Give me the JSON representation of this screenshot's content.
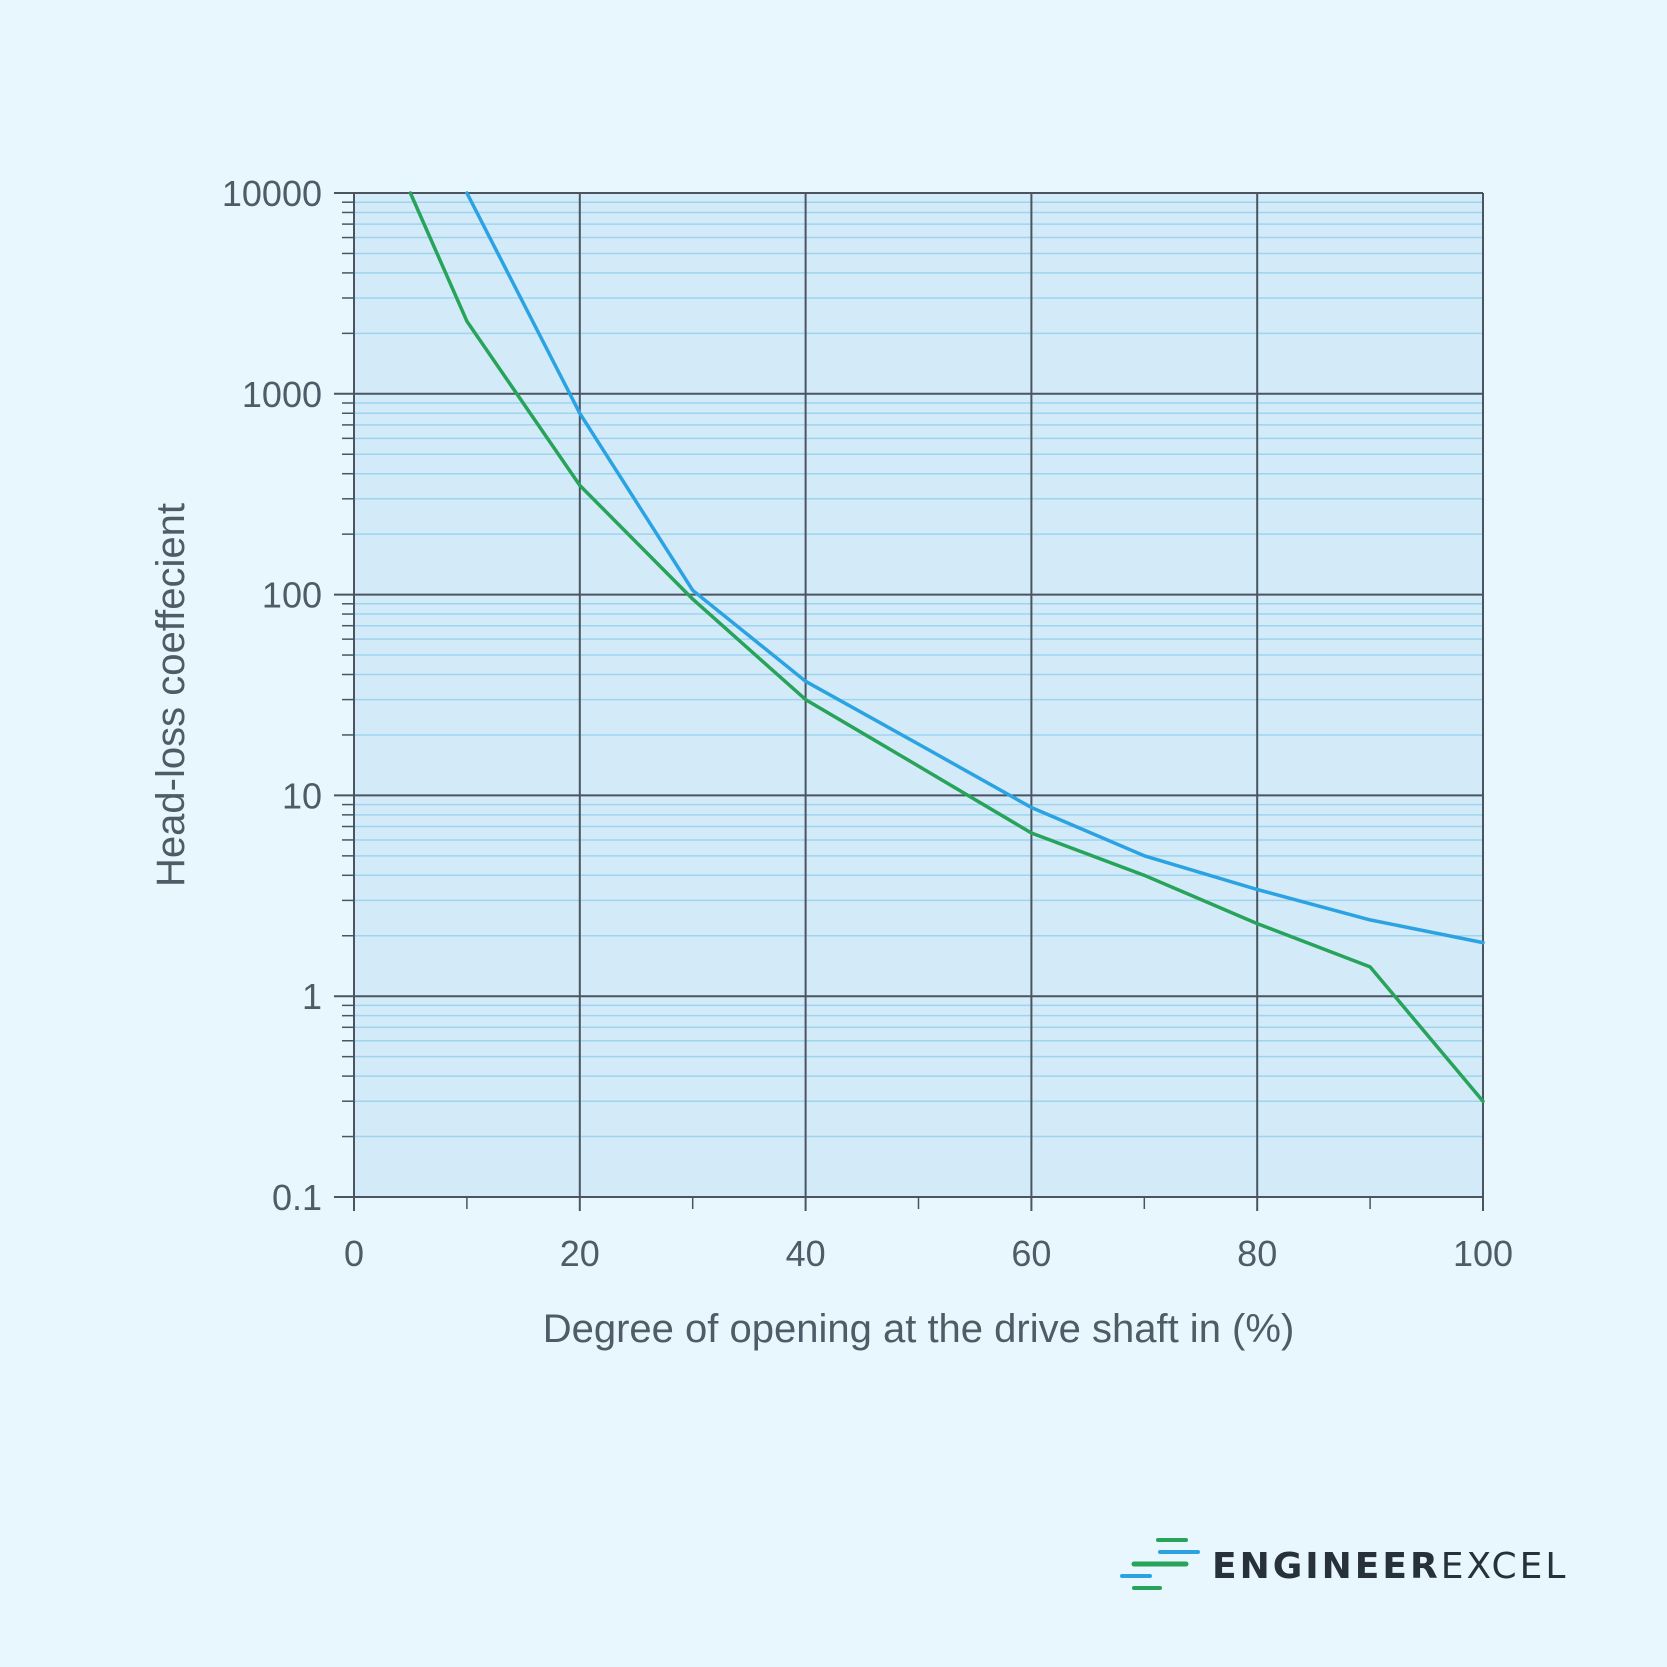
{
  "chart_data": {
    "type": "line",
    "title": "",
    "xlabel": "Degree of opening at the drive shaft in (%)",
    "ylabel": "Head-loss coeffecient",
    "x_ticks": [
      "0",
      "20",
      "40",
      "60",
      "80",
      "100"
    ],
    "y_ticks": [
      "0.1",
      "1",
      "10",
      "100",
      "1000",
      "10000"
    ],
    "xlim": [
      0,
      100
    ],
    "ylim": [
      0.1,
      10000
    ],
    "y_scale": "log",
    "grid": true,
    "series": [
      {
        "color": "#2ba3e3",
        "x": [
          10,
          20,
          30,
          40,
          50,
          60,
          70,
          80,
          90,
          100
        ],
        "y": [
          10000,
          800,
          105,
          37,
          18,
          8.7,
          5.0,
          3.4,
          2.4,
          1.85
        ]
      },
      {
        "color": "#27a35a",
        "x": [
          5,
          10,
          20,
          30,
          40,
          50,
          60,
          70,
          80,
          90,
          100
        ],
        "y": [
          10000,
          2300,
          350,
          95,
          30,
          14,
          6.5,
          4.0,
          2.3,
          1.4,
          0.3
        ]
      }
    ]
  },
  "colors": {
    "background": "#e8f6fd",
    "plot_area": "#d3eaf8",
    "major_grid": "#4a5560",
    "minor_grid": "#9fd4ef",
    "text": "#4f5b66"
  },
  "logo": {
    "text_part1": "ENGINEER",
    "text_part2": "EXCEL",
    "icon": "speed-lines-icon"
  }
}
